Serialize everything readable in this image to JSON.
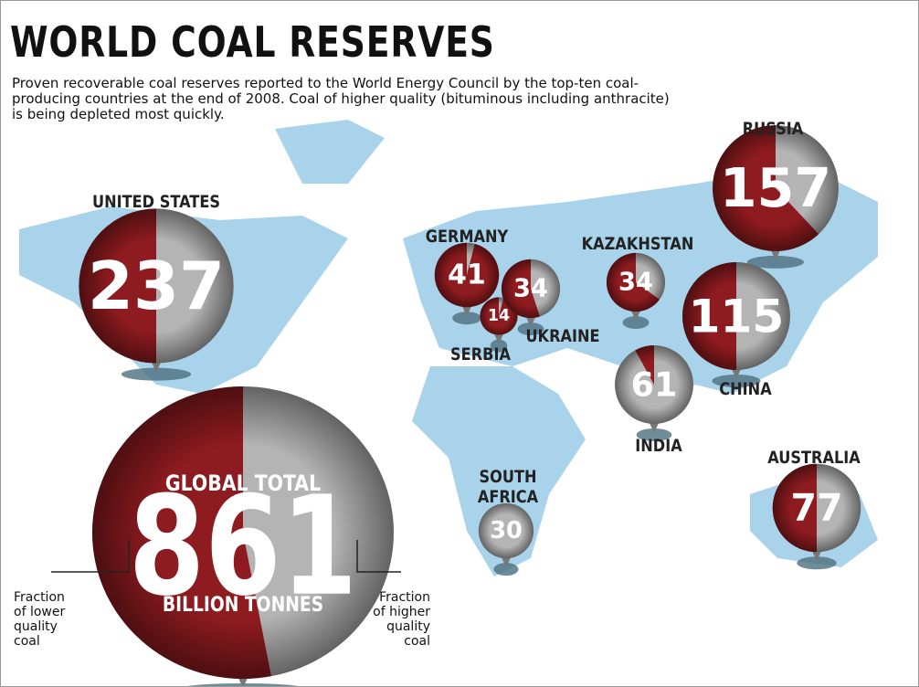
{
  "chart_data": {
    "type": "pie-map",
    "title": "WORLD COAL RESERVES",
    "subtitle": "Proven recoverable coal reserves reported to the World Energy Council by the top-ten coal-producing countries at the end of 2008. Coal of higher quality (bituminous including anthracite) is being depleted most quickly.",
    "colors": {
      "lower": "#8e1b1f",
      "higher": "#b4b4b4"
    },
    "total_label": "GLOBAL TOTAL",
    "total": 861,
    "total_lower_share": 53,
    "unit_label": "BILLION TONNES",
    "legend": {
      "lower": "Fraction of lower quality coal",
      "higher": "Fraction of higher quality coal"
    },
    "countries": [
      {
        "name": "UNITED STATES",
        "value": 237,
        "lower_share": 50
      },
      {
        "name": "RUSSIA",
        "value": 157,
        "lower_share": 62
      },
      {
        "name": "GERMANY",
        "value": 41,
        "lower_share": 96
      },
      {
        "name": "SERBIA",
        "value": 14,
        "lower_share": 96
      },
      {
        "name": "UKRAINE",
        "value": 34,
        "lower_share": 55
      },
      {
        "name": "KAZAKHSTAN",
        "value": 34,
        "lower_share": 65
      },
      {
        "name": "CHINA",
        "value": 115,
        "lower_share": 50
      },
      {
        "name": "INDIA",
        "value": 61,
        "lower_share": 8
      },
      {
        "name": "SOUTH AFRICA",
        "value": 30,
        "lower_share": 0
      },
      {
        "name": "AUSTRALIA",
        "value": 77,
        "lower_share": 50
      }
    ]
  }
}
